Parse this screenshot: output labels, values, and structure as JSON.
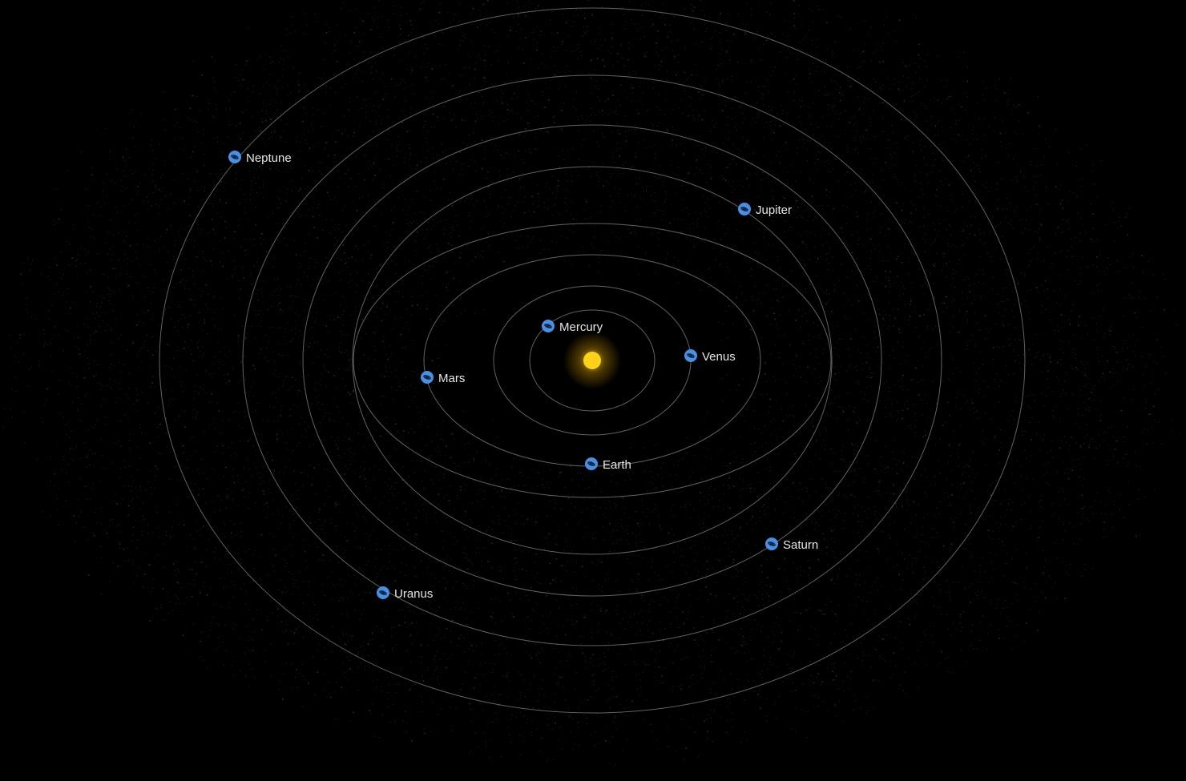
{
  "colors": {
    "background": "#000000",
    "orbit": "#5f6266",
    "sun": "#ffd21a",
    "sun_glow": "#f0b800",
    "planet_icon": "#4a90e2",
    "planet_icon_mark": "#0f2747",
    "label": "#e6e6e6",
    "dust": "#c8cfc8"
  },
  "sun": {
    "icon": "sun-icon"
  },
  "planets": [
    {
      "id": "mercury",
      "label": "Mercury",
      "icon": "planet-icon"
    },
    {
      "id": "venus",
      "label": "Venus",
      "icon": "planet-icon"
    },
    {
      "id": "earth",
      "label": "Earth",
      "icon": "planet-icon"
    },
    {
      "id": "mars",
      "label": "Mars",
      "icon": "planet-icon"
    },
    {
      "id": "jupiter",
      "label": "Jupiter",
      "icon": "planet-icon"
    },
    {
      "id": "saturn",
      "label": "Saturn",
      "icon": "planet-icon"
    },
    {
      "id": "uranus",
      "label": "Uranus",
      "icon": "planet-icon"
    },
    {
      "id": "neptune",
      "label": "Neptune",
      "icon": "planet-icon"
    }
  ]
}
